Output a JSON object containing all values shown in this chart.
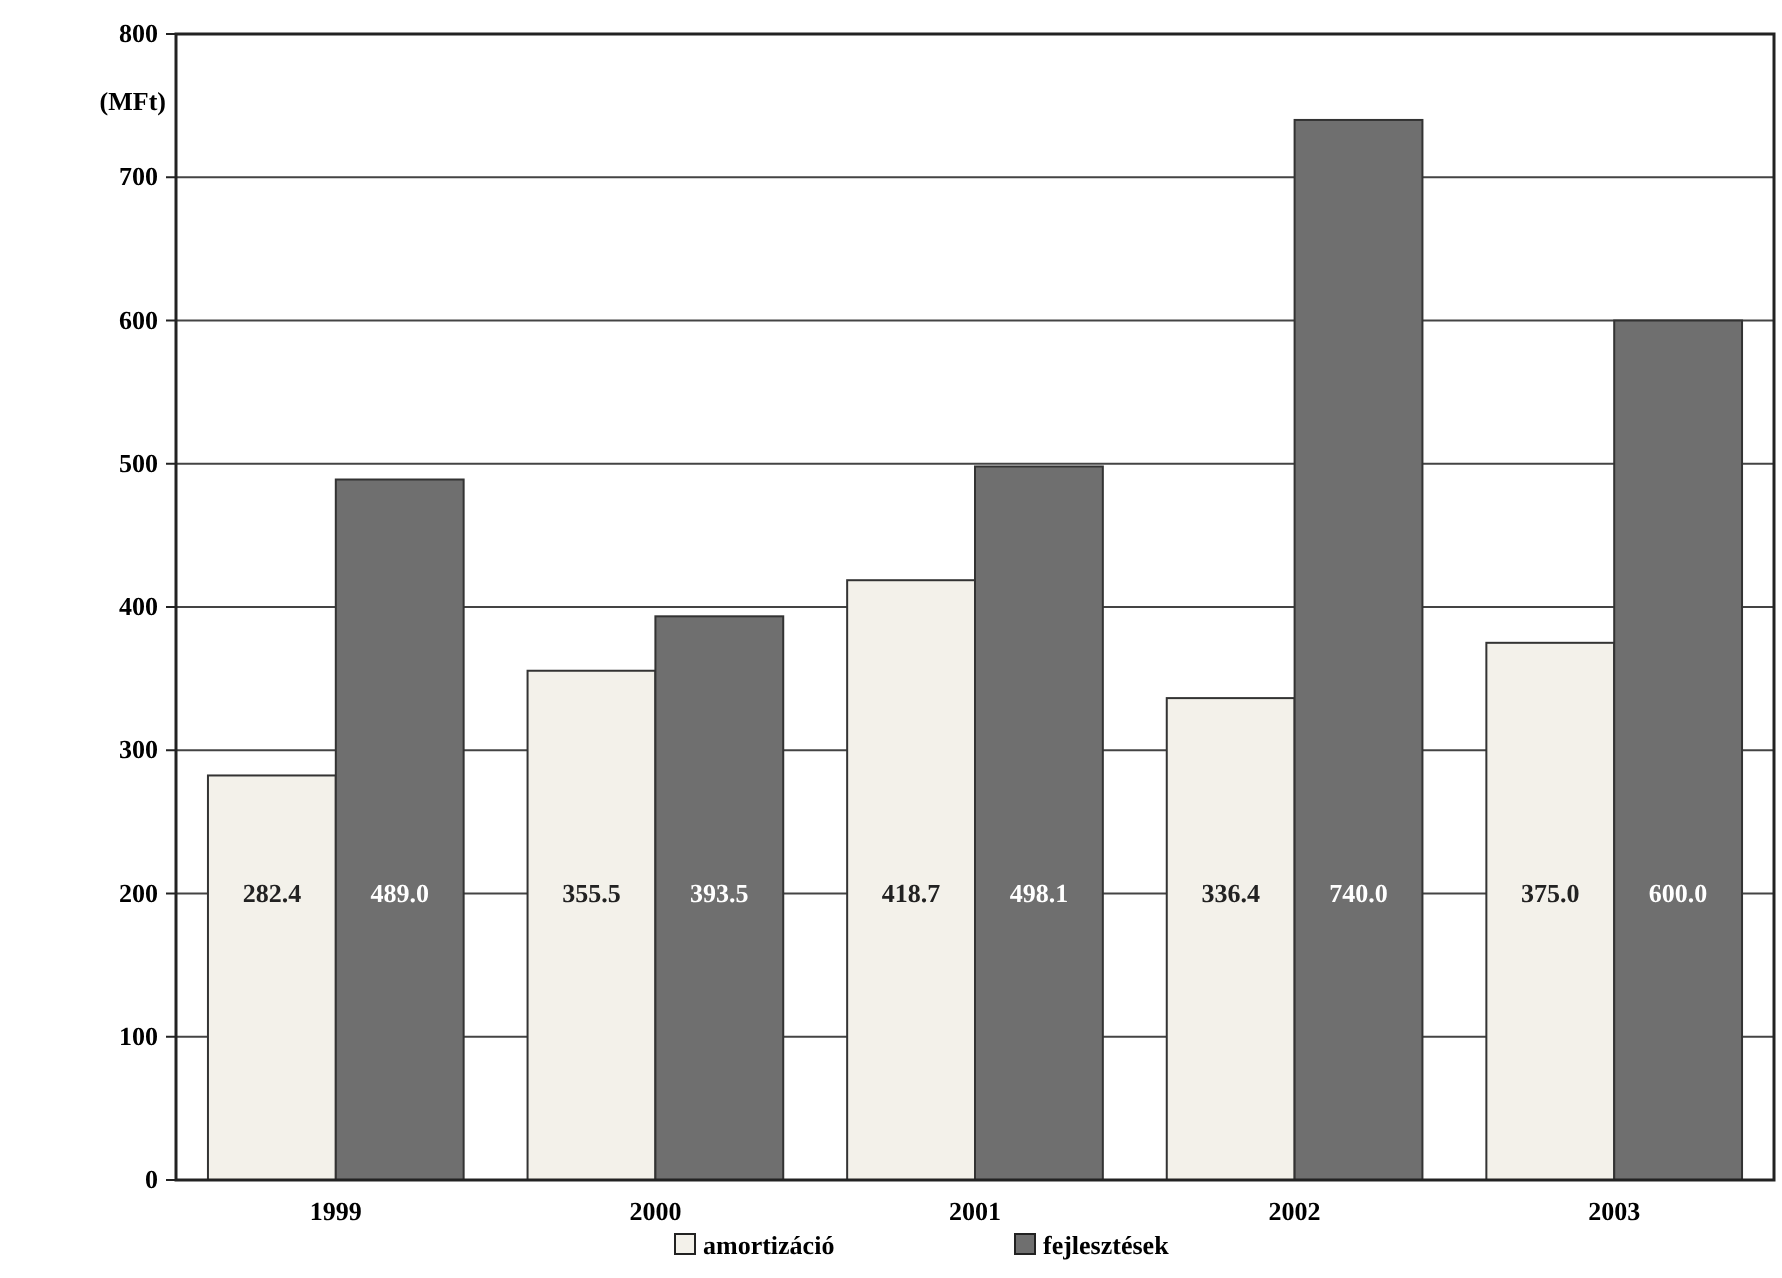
{
  "chart_data": {
    "type": "bar",
    "ylabel": "(MFt)",
    "categories": [
      "1999",
      "2000",
      "2001",
      "2002",
      "2003"
    ],
    "series": [
      {
        "name": "amortizáció",
        "color": "#f3f1ea",
        "values": [
          282.4,
          355.5,
          418.7,
          336.4,
          375.0
        ]
      },
      {
        "name": "fejlesztések",
        "color": "#6f6f6f",
        "values": [
          489.0,
          393.5,
          498.1,
          740.0,
          600.0
        ]
      }
    ],
    "value_labels": [
      [
        "282.4",
        "355.5",
        "418.7",
        "336.4",
        "375.0"
      ],
      [
        "489.0",
        "393.5",
        "498.1",
        "740.0",
        "600.0"
      ]
    ],
    "ylim": [
      0,
      800
    ],
    "yticks": [
      0,
      100,
      200,
      300,
      400,
      500,
      600,
      700,
      800
    ],
    "grid": "y",
    "legend": "bottom"
  }
}
